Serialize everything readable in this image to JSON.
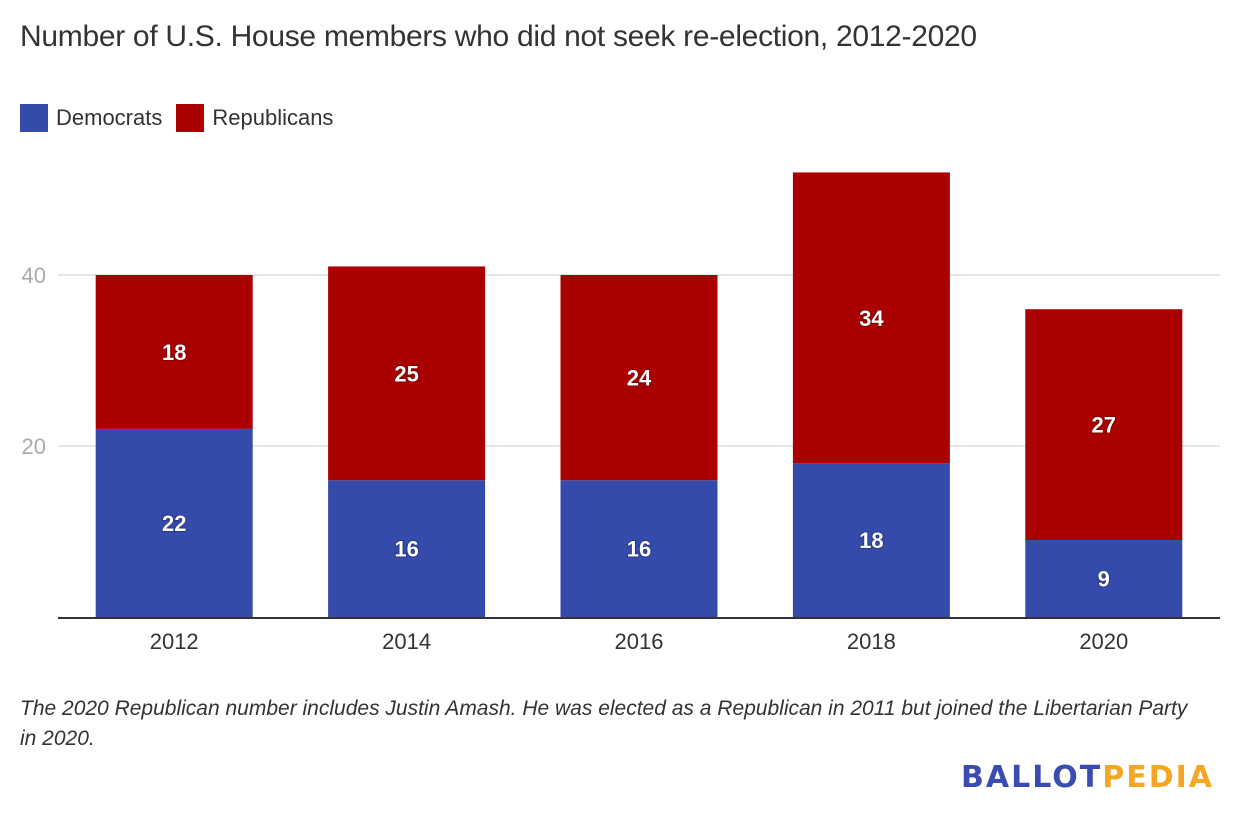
{
  "chart_data": {
    "type": "bar",
    "stacked": true,
    "title": "Number of U.S. House members who did not seek re-election, 2012-2020",
    "xlabel": "",
    "ylabel": "",
    "categories": [
      "2012",
      "2014",
      "2016",
      "2018",
      "2020"
    ],
    "series": [
      {
        "name": "Democrats",
        "color": "#344bab",
        "values": [
          22,
          16,
          16,
          18,
          9
        ]
      },
      {
        "name": "Republicans",
        "color": "#aa0000",
        "values": [
          18,
          25,
          24,
          34,
          27
        ]
      }
    ],
    "ylim": [
      0,
      52
    ],
    "yticks": [
      20,
      40
    ],
    "ytick_labels": [
      "20",
      "40"
    ],
    "grid": true,
    "data_labels": true,
    "legend_position": "top-left"
  },
  "legend": {
    "items": [
      {
        "label": "Democrats",
        "color": "#344bab"
      },
      {
        "label": "Republicans",
        "color": "#aa0000"
      }
    ]
  },
  "note": "The 2020 Republican number includes Justin Amash. He was elected as a Republican in 2011 but joined the Libertarian Party in 2020.",
  "logo": {
    "part1": "BALLOT",
    "part2": "PEDIA"
  }
}
